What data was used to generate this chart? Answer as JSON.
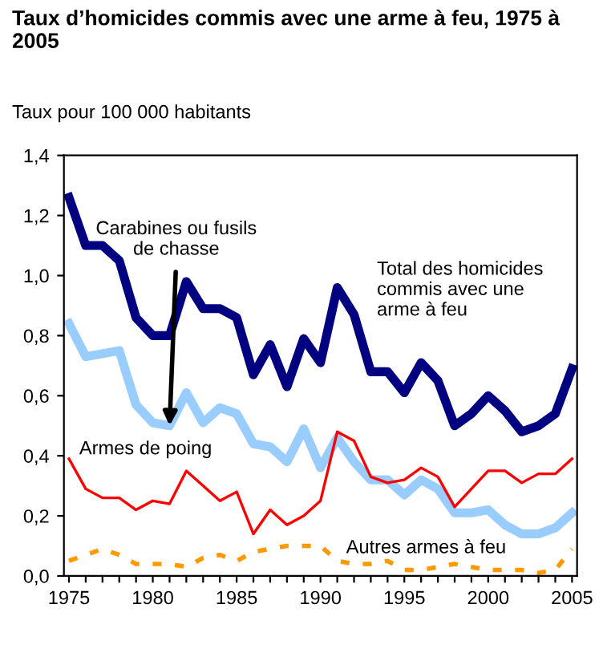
{
  "chart_data": {
    "type": "line",
    "title": "Taux d’homicides commis avec une arme à feu, 1975 à 2005",
    "ylabel": "Taux pour 100 000 habitants",
    "x": [
      1975,
      1976,
      1977,
      1978,
      1979,
      1980,
      1981,
      1982,
      1983,
      1984,
      1985,
      1986,
      1987,
      1988,
      1989,
      1990,
      1991,
      1992,
      1993,
      1994,
      1995,
      1996,
      1997,
      1998,
      1999,
      2000,
      2001,
      2002,
      2003,
      2004,
      2005
    ],
    "series": [
      {
        "name": "Total des homicides\ncommis avec une\narme à feu",
        "color": "#000080",
        "line_style": "solid",
        "values": [
          1.26,
          1.1,
          1.1,
          1.05,
          0.86,
          0.8,
          0.8,
          0.98,
          0.89,
          0.89,
          0.86,
          0.67,
          0.77,
          0.63,
          0.79,
          0.71,
          0.96,
          0.87,
          0.68,
          0.68,
          0.61,
          0.71,
          0.65,
          0.5,
          0.54,
          0.6,
          0.55,
          0.48,
          0.5,
          0.54,
          0.69
        ]
      },
      {
        "name": "Carabines ou fusils\nde chasse",
        "color": "#99ccff",
        "line_style": "solid",
        "values": [
          0.84,
          0.73,
          0.74,
          0.75,
          0.57,
          0.51,
          0.5,
          0.61,
          0.51,
          0.56,
          0.54,
          0.44,
          0.43,
          0.38,
          0.49,
          0.36,
          0.46,
          0.38,
          0.32,
          0.32,
          0.27,
          0.32,
          0.29,
          0.21,
          0.21,
          0.22,
          0.17,
          0.14,
          0.14,
          0.16,
          0.21
        ]
      },
      {
        "name": "Armes de poing",
        "color": "#ff0000",
        "line_style": "solid",
        "values": [
          0.39,
          0.29,
          0.26,
          0.26,
          0.22,
          0.25,
          0.24,
          0.35,
          0.3,
          0.25,
          0.28,
          0.14,
          0.22,
          0.17,
          0.2,
          0.25,
          0.48,
          0.45,
          0.33,
          0.31,
          0.32,
          0.36,
          0.33,
          0.23,
          0.29,
          0.35,
          0.35,
          0.31,
          0.34,
          0.34,
          0.39
        ]
      },
      {
        "name": "Autres armes à feu",
        "color": "#ff9900",
        "line_style": "dashed",
        "values": [
          0.05,
          0.07,
          0.09,
          0.07,
          0.04,
          0.04,
          0.04,
          0.03,
          0.06,
          0.07,
          0.05,
          0.08,
          0.09,
          0.1,
          0.1,
          0.1,
          0.05,
          0.04,
          0.04,
          0.05,
          0.02,
          0.02,
          0.03,
          0.04,
          0.03,
          0.02,
          0.02,
          0.02,
          0.01,
          0.02,
          0.09
        ]
      }
    ],
    "xlim": [
      1974.7,
      2005.3
    ],
    "ylim": [
      0,
      1.4
    ],
    "xticks": [
      1975,
      {
        "value": 1976,
        "label": null
      },
      {
        "value": 1977,
        "label": null
      },
      {
        "value": 1978,
        "label": null
      },
      {
        "value": 1979,
        "label": null
      },
      1980,
      {
        "value": 1981,
        "label": null
      },
      {
        "value": 1982,
        "label": null
      },
      {
        "value": 1983,
        "label": null
      },
      {
        "value": 1984,
        "label": null
      },
      1985,
      {
        "value": 1986,
        "label": null
      },
      {
        "value": 1987,
        "label": null
      },
      {
        "value": 1988,
        "label": null
      },
      {
        "value": 1989,
        "label": null
      },
      1990,
      {
        "value": 1991,
        "label": null
      },
      {
        "value": 1992,
        "label": null
      },
      {
        "value": 1993,
        "label": null
      },
      {
        "value": 1994,
        "label": null
      },
      1995,
      {
        "value": 1996,
        "label": null
      },
      {
        "value": 1997,
        "label": null
      },
      {
        "value": 1998,
        "label": null
      },
      {
        "value": 1999,
        "label": null
      },
      2000,
      {
        "value": 2001,
        "label": null
      },
      {
        "value": 2002,
        "label": null
      },
      {
        "value": 2003,
        "label": null
      },
      {
        "value": 2004,
        "label": null
      },
      2005
    ],
    "yticks": [
      {
        "value": 0,
        "label": "0,0"
      },
      {
        "value": 0.2,
        "label": "0,2"
      },
      {
        "value": 0.4,
        "label": "0,4"
      },
      {
        "value": 0.6,
        "label": "0,6"
      },
      {
        "value": 0.8,
        "label": "0,8"
      },
      {
        "value": 1.0,
        "label": "1,0"
      },
      {
        "value": 1.2,
        "label": "1,2"
      },
      {
        "value": 1.4,
        "label": "1,4"
      }
    ],
    "grid": false,
    "legend": false,
    "marker": "none"
  }
}
